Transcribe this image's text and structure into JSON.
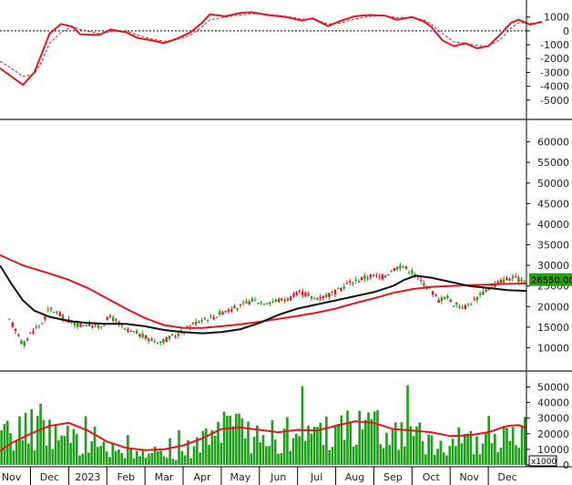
{
  "chart_data": {
    "type": "stock-chart",
    "months": [
      "Nov",
      "Dec",
      "2023",
      "Feb",
      "Mar",
      "Apr",
      "May",
      "Jun",
      "Jul",
      "Aug",
      "Sep",
      "Oct",
      "Nov",
      "Dec"
    ],
    "month_positions": [
      0,
      1,
      2,
      3,
      4,
      5,
      6,
      7,
      8,
      9,
      10,
      11,
      12,
      13
    ],
    "x_range": [
      -0.3,
      13.5
    ],
    "oscillator": {
      "ylim": [
        -6200,
        2100
      ],
      "ticks": [
        1000,
        0,
        -1000,
        -2000,
        -3000,
        -4000,
        -5000
      ],
      "zero_line": 0,
      "colors": {
        "main": "#e8141c",
        "signal": "#e8141c"
      },
      "main": [
        [
          -0.3,
          -2700
        ],
        [
          0,
          -3300
        ],
        [
          0.3,
          -3900
        ],
        [
          0.6,
          -3000
        ],
        [
          0.8,
          -1600
        ],
        [
          1.0,
          -200
        ],
        [
          1.3,
          500
        ],
        [
          1.6,
          300
        ],
        [
          1.8,
          -250
        ],
        [
          2.3,
          -300
        ],
        [
          2.6,
          100
        ],
        [
          3.0,
          -100
        ],
        [
          3.3,
          -500
        ],
        [
          3.7,
          -700
        ],
        [
          4.0,
          -900
        ],
        [
          4.3,
          -600
        ],
        [
          4.7,
          -100
        ],
        [
          5.0,
          600
        ],
        [
          5.2,
          1200
        ],
        [
          5.6,
          1050
        ],
        [
          6.0,
          1300
        ],
        [
          6.3,
          1350
        ],
        [
          6.7,
          1150
        ],
        [
          7.2,
          1000
        ],
        [
          7.6,
          750
        ],
        [
          7.9,
          900
        ],
        [
          8.3,
          350
        ],
        [
          8.6,
          700
        ],
        [
          9.0,
          1050
        ],
        [
          9.4,
          1150
        ],
        [
          9.8,
          1100
        ],
        [
          10.1,
          800
        ],
        [
          10.5,
          1000
        ],
        [
          10.8,
          700
        ],
        [
          11.0,
          300
        ],
        [
          11.3,
          -700
        ],
        [
          11.6,
          -1100
        ],
        [
          11.9,
          -900
        ],
        [
          12.2,
          -1250
        ],
        [
          12.5,
          -1100
        ],
        [
          12.8,
          -300
        ],
        [
          13.1,
          600
        ],
        [
          13.3,
          800
        ],
        [
          13.6,
          450
        ],
        [
          13.9,
          650
        ]
      ],
      "signal": [
        [
          -0.3,
          -2200
        ],
        [
          0,
          -2700
        ],
        [
          0.3,
          -3300
        ],
        [
          0.6,
          -3100
        ],
        [
          0.8,
          -2200
        ],
        [
          1.0,
          -900
        ],
        [
          1.3,
          -100
        ],
        [
          1.6,
          300
        ],
        [
          1.8,
          100
        ],
        [
          2.3,
          -200
        ],
        [
          2.6,
          -50
        ],
        [
          3.0,
          0
        ],
        [
          3.3,
          -300
        ],
        [
          3.7,
          -600
        ],
        [
          4.0,
          -750
        ],
        [
          4.3,
          -650
        ],
        [
          4.7,
          -300
        ],
        [
          5.0,
          300
        ],
        [
          5.2,
          800
        ],
        [
          5.6,
          1000
        ],
        [
          6.0,
          1150
        ],
        [
          6.3,
          1250
        ],
        [
          6.7,
          1200
        ],
        [
          7.2,
          1050
        ],
        [
          7.6,
          850
        ],
        [
          7.9,
          850
        ],
        [
          8.3,
          500
        ],
        [
          8.6,
          550
        ],
        [
          9.0,
          850
        ],
        [
          9.4,
          1050
        ],
        [
          9.8,
          1100
        ],
        [
          10.1,
          950
        ],
        [
          10.5,
          950
        ],
        [
          10.8,
          800
        ],
        [
          11.0,
          500
        ],
        [
          11.3,
          -200
        ],
        [
          11.6,
          -800
        ],
        [
          11.9,
          -900
        ],
        [
          12.2,
          -1050
        ],
        [
          12.5,
          -1100
        ],
        [
          12.8,
          -650
        ],
        [
          13.1,
          200
        ],
        [
          13.3,
          600
        ],
        [
          13.6,
          550
        ],
        [
          13.9,
          600
        ]
      ]
    },
    "price": {
      "ylim": [
        5000,
        65000
      ],
      "ticks": [
        60000,
        55000,
        50000,
        45000,
        40000,
        35000,
        30000,
        25000,
        20000,
        15000,
        10000
      ],
      "last_price_label": "26550.00",
      "colors": {
        "up": "#2e9a1a",
        "down": "#e8141c",
        "ma_long": "#e8141c",
        "ma_short": "#111111",
        "badge_bg": "#2e9a1a"
      },
      "close": [
        [
          -0.3,
          19000
        ],
        [
          0,
          16000
        ],
        [
          0.2,
          13000
        ],
        [
          0.3,
          10500
        ],
        [
          0.5,
          13500
        ],
        [
          0.8,
          16000
        ],
        [
          1.0,
          19500
        ],
        [
          1.2,
          18500
        ],
        [
          1.4,
          17000
        ],
        [
          1.6,
          16000
        ],
        [
          1.8,
          15500
        ],
        [
          2.0,
          15800
        ],
        [
          2.3,
          15000
        ],
        [
          2.6,
          17500
        ],
        [
          2.8,
          16000
        ],
        [
          3.0,
          14000
        ],
        [
          3.3,
          13500
        ],
        [
          3.6,
          12000
        ],
        [
          3.9,
          11500
        ],
        [
          4.2,
          12500
        ],
        [
          4.5,
          14000
        ],
        [
          4.8,
          16000
        ],
        [
          5.0,
          17000
        ],
        [
          5.3,
          17500
        ],
        [
          5.6,
          19000
        ],
        [
          6.0,
          20000
        ],
        [
          6.3,
          21500
        ],
        [
          6.6,
          21000
        ],
        [
          7.0,
          21500
        ],
        [
          7.3,
          22000
        ],
        [
          7.6,
          23500
        ],
        [
          7.9,
          22000
        ],
        [
          8.2,
          22500
        ],
        [
          8.5,
          23500
        ],
        [
          8.8,
          25500
        ],
        [
          9.1,
          26500
        ],
        [
          9.4,
          27500
        ],
        [
          9.7,
          27000
        ],
        [
          10.0,
          29000
        ],
        [
          10.2,
          30000
        ],
        [
          10.5,
          28500
        ],
        [
          10.7,
          26500
        ],
        [
          11.0,
          24000
        ],
        [
          11.2,
          21500
        ],
        [
          11.4,
          22500
        ],
        [
          11.6,
          20500
        ],
        [
          11.9,
          20000
        ],
        [
          12.2,
          22000
        ],
        [
          12.5,
          24500
        ],
        [
          12.8,
          26000
        ],
        [
          13.1,
          27000
        ],
        [
          13.3,
          26500
        ],
        [
          13.5,
          26550
        ]
      ],
      "ma_short": [
        [
          -0.3,
          30000
        ],
        [
          0,
          25500
        ],
        [
          0.3,
          21500
        ],
        [
          0.6,
          19000
        ],
        [
          1.0,
          17500
        ],
        [
          1.5,
          16500
        ],
        [
          2.0,
          16000
        ],
        [
          2.5,
          15800
        ],
        [
          3.0,
          15800
        ],
        [
          3.5,
          15200
        ],
        [
          4.0,
          14300
        ],
        [
          4.5,
          13800
        ],
        [
          5.0,
          13500
        ],
        [
          5.5,
          13800
        ],
        [
          6.0,
          14500
        ],
        [
          6.5,
          16000
        ],
        [
          7.0,
          18000
        ],
        [
          7.5,
          19500
        ],
        [
          8.0,
          20500
        ],
        [
          8.5,
          21500
        ],
        [
          9.0,
          22500
        ],
        [
          9.5,
          23500
        ],
        [
          10.0,
          25000
        ],
        [
          10.3,
          26500
        ],
        [
          10.6,
          27500
        ],
        [
          11.0,
          27000
        ],
        [
          11.5,
          26000
        ],
        [
          12.0,
          25000
        ],
        [
          12.5,
          24500
        ],
        [
          13.0,
          24000
        ],
        [
          13.5,
          23800
        ]
      ],
      "ma_long": [
        [
          -0.3,
          32500
        ],
        [
          0.3,
          30000
        ],
        [
          1.0,
          28000
        ],
        [
          1.5,
          26500
        ],
        [
          2.0,
          24500
        ],
        [
          2.5,
          22000
        ],
        [
          3.0,
          19500
        ],
        [
          3.5,
          17200
        ],
        [
          4.0,
          15500
        ],
        [
          4.5,
          14800
        ],
        [
          5.0,
          14800
        ],
        [
          5.5,
          15200
        ],
        [
          6.0,
          15700
        ],
        [
          6.5,
          16300
        ],
        [
          7.0,
          17000
        ],
        [
          7.5,
          17700
        ],
        [
          8.0,
          18500
        ],
        [
          8.5,
          19500
        ],
        [
          9.0,
          20800
        ],
        [
          9.5,
          22000
        ],
        [
          10.0,
          23300
        ],
        [
          10.5,
          24200
        ],
        [
          11.0,
          24800
        ],
        [
          11.5,
          25000
        ],
        [
          12.0,
          25200
        ],
        [
          12.5,
          25300
        ],
        [
          13.0,
          25500
        ],
        [
          13.5,
          25600
        ]
      ]
    },
    "volume": {
      "ylim": [
        0,
        59000
      ],
      "ticks": [
        50000,
        40000,
        30000,
        20000,
        10000,
        0
      ],
      "unit_label": "x1000",
      "colors": {
        "bars": "#1ea01a",
        "ma": "#e8141c"
      },
      "count": 175,
      "envelope": [
        [
          -0.3,
          22000
        ],
        [
          0,
          30000
        ],
        [
          0.5,
          34000
        ],
        [
          1.0,
          30000
        ],
        [
          1.5,
          24000
        ],
        [
          2.0,
          18000
        ],
        [
          2.5,
          14000
        ],
        [
          3.0,
          12000
        ],
        [
          3.5,
          11000
        ],
        [
          4.0,
          10500
        ],
        [
          4.5,
          13000
        ],
        [
          5.0,
          22000
        ],
        [
          5.5,
          33000
        ],
        [
          6.0,
          30000
        ],
        [
          6.5,
          26000
        ],
        [
          7.0,
          27000
        ],
        [
          7.5,
          29000
        ],
        [
          8.0,
          28000
        ],
        [
          8.5,
          32000
        ],
        [
          9.0,
          36000
        ],
        [
          9.5,
          34000
        ],
        [
          10.0,
          30000
        ],
        [
          10.5,
          28000
        ],
        [
          11.0,
          24000
        ],
        [
          11.5,
          20000
        ],
        [
          12.0,
          20000
        ],
        [
          12.5,
          24000
        ],
        [
          13.0,
          28000
        ],
        [
          13.5,
          29000
        ]
      ],
      "ma": [
        [
          -0.3,
          9000
        ],
        [
          0,
          14000
        ],
        [
          0.5,
          20000
        ],
        [
          1.0,
          25000
        ],
        [
          1.5,
          27000
        ],
        [
          2.0,
          22000
        ],
        [
          2.5,
          15000
        ],
        [
          3.0,
          11000
        ],
        [
          3.5,
          9500
        ],
        [
          4.0,
          10000
        ],
        [
          4.5,
          12500
        ],
        [
          5.0,
          17000
        ],
        [
          5.5,
          23000
        ],
        [
          6.0,
          24000
        ],
        [
          6.5,
          22500
        ],
        [
          7.0,
          21000
        ],
        [
          7.5,
          22500
        ],
        [
          8.0,
          22000
        ],
        [
          8.5,
          25000
        ],
        [
          9.0,
          28000
        ],
        [
          9.5,
          27000
        ],
        [
          10.0,
          23000
        ],
        [
          10.5,
          22000
        ],
        [
          11.0,
          21000
        ],
        [
          11.5,
          18500
        ],
        [
          12.0,
          19000
        ],
        [
          12.5,
          21000
        ],
        [
          13.0,
          25000
        ],
        [
          13.3,
          25500
        ],
        [
          13.5,
          23500
        ]
      ]
    }
  }
}
